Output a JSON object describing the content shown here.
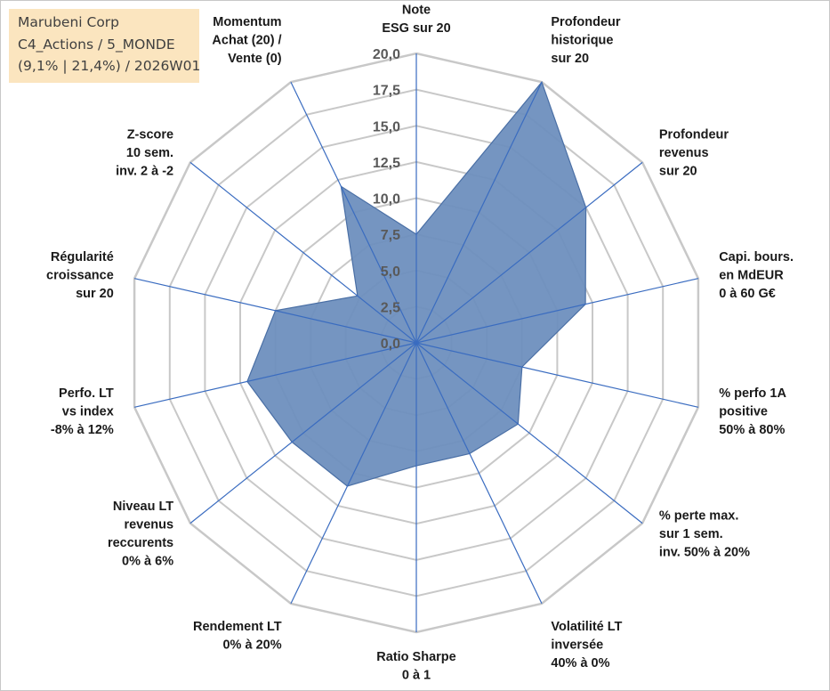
{
  "title_box": {
    "line1": "Marubeni Corp",
    "line2": "C4_Actions / 5_MONDE",
    "line3": "(9,1% | 21,4%) / 2026W01"
  },
  "chart_data": {
    "type": "radar",
    "rmin": 0,
    "rmax": 20,
    "tick_labels": [
      "0,0",
      "2,5",
      "5,0",
      "7,5",
      "10,0",
      "12,5",
      "15,0",
      "17,5",
      "20,0"
    ],
    "grid": true,
    "categories": [
      [
        "Note",
        "ESG sur 20"
      ],
      [
        "Profondeur",
        "historique",
        "sur 20"
      ],
      [
        "Profondeur",
        "revenus",
        "sur 20"
      ],
      [
        "Capi. bours.",
        "en MdEUR",
        "0 à 60 G€"
      ],
      [
        "% perfo 1A",
        "positive",
        "50% à 80%"
      ],
      [
        "% perte max.",
        "sur 1 sem.",
        "inv. 50% à 20%"
      ],
      [
        "Volatilité LT",
        "inversée",
        "40% à 0%"
      ],
      [
        "Ratio Sharpe",
        "0 à 1"
      ],
      [
        "Rendement LT",
        "0% à 20%"
      ],
      [
        "Niveau LT",
        "revenus",
        "reccurents",
        "0% à 6%"
      ],
      [
        "Perfo. LT",
        "vs index",
        "-8% à 12%"
      ],
      [
        "Régularité",
        "croissance",
        "sur 20"
      ],
      [
        "Z-score",
        "10 sem.",
        "inv. 2 à -2"
      ],
      [
        "Momentum",
        "Achat (20) /",
        "Vente (0)"
      ]
    ],
    "values": [
      7.5,
      20.0,
      15.0,
      12.0,
      7.5,
      9.0,
      8.5,
      8.5,
      11.0,
      11.0,
      12.0,
      10.0,
      5.2,
      12.0
    ],
    "colors": {
      "fill": "#6e8fbe",
      "stroke": "#4a6fa5",
      "spoke": "#3a6cc0",
      "ring": "#c8c8c8"
    }
  }
}
